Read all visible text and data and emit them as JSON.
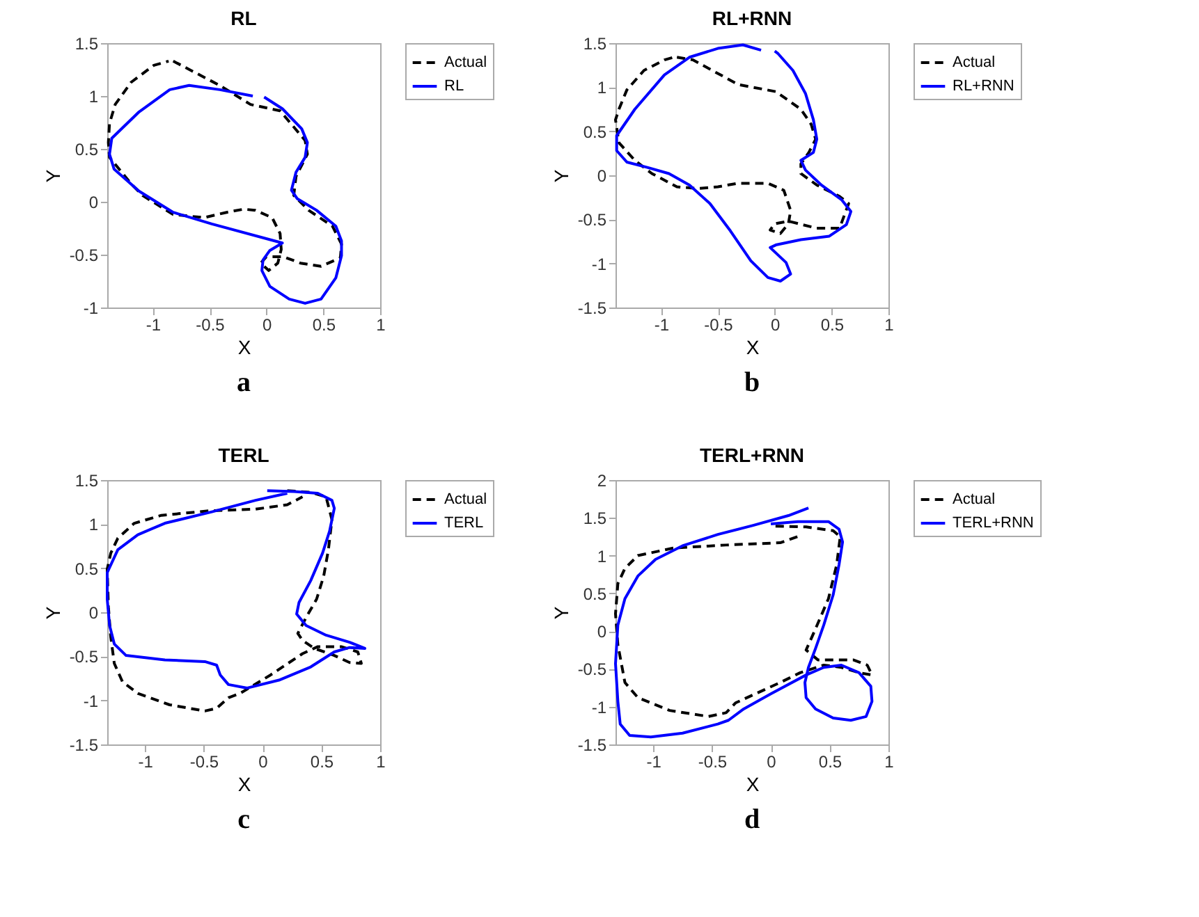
{
  "chart_data": [
    {
      "type": "line",
      "title": "RL",
      "xlabel": "X",
      "ylabel": "Y",
      "xlim": [
        -1.4,
        1
      ],
      "ylim": [
        -1,
        1.5
      ],
      "xticks": [
        -1,
        -0.5,
        0,
        0.5,
        1
      ],
      "yticks": [
        -1,
        -0.5,
        0,
        0.5,
        1,
        1.5
      ],
      "legend": "top right",
      "annotations": [
        "a"
      ],
      "series": [
        {
          "name": "Actual",
          "color": "#000000",
          "line_style": "dashed",
          "x": [
            -0.82,
            -0.41,
            -0.14,
            0.12,
            0.34,
            0.36,
            0.26,
            0.24,
            0.37,
            0.58,
            0.66,
            0.65,
            0.48,
            0.3,
            0.15,
            0.0,
            -0.05,
            0.02,
            0.1,
            0.13,
            0.12,
            0.05,
            -0.1,
            -0.2,
            -0.35,
            -0.55,
            -0.82,
            -1.09,
            -1.19,
            -1.38,
            -1.39,
            -1.38,
            -1.33,
            -1.19,
            -0.99,
            -0.86
          ],
          "values": [
            1.33,
            1.1,
            0.92,
            0.86,
            0.58,
            0.45,
            0.24,
            0.06,
            -0.08,
            -0.23,
            -0.4,
            -0.53,
            -0.61,
            -0.58,
            -0.52,
            -0.52,
            -0.58,
            -0.65,
            -0.58,
            -0.45,
            -0.3,
            -0.15,
            -0.08,
            -0.07,
            -0.1,
            -0.15,
            -0.12,
            0.06,
            0.17,
            0.42,
            0.56,
            0.74,
            0.92,
            1.13,
            1.29,
            1.33
          ]
        },
        {
          "name": "RL",
          "color": "#0000ff",
          "line_style": "solid",
          "x": [
            -0.12,
            -0.41,
            -0.68,
            -0.85,
            -1.12,
            -1.36,
            -1.38,
            -1.34,
            -1.12,
            -0.82,
            -0.48,
            0.14,
            0.03,
            -0.03,
            -0.04,
            0.03,
            0.2,
            0.34,
            0.48,
            0.61,
            0.66,
            0.66,
            0.61,
            0.44,
            0.27,
            0.22,
            0.26,
            0.34,
            0.36,
            0.31,
            0.14,
            -0.02
          ],
          "values": [
            1.0,
            1.06,
            1.1,
            1.06,
            0.85,
            0.6,
            0.45,
            0.31,
            0.1,
            -0.1,
            -0.21,
            -0.39,
            -0.46,
            -0.55,
            -0.65,
            -0.8,
            -0.92,
            -0.96,
            -0.92,
            -0.72,
            -0.51,
            -0.37,
            -0.23,
            -0.08,
            0.03,
            0.11,
            0.28,
            0.42,
            0.56,
            0.69,
            0.88,
            0.99
          ]
        }
      ]
    },
    {
      "type": "line",
      "title": "RL+RNN",
      "xlabel": "X",
      "ylabel": "Y",
      "xlim": [
        -1.4,
        1
      ],
      "ylim": [
        -1.5,
        1.5
      ],
      "xticks": [
        -1,
        -0.5,
        0,
        0.5,
        1
      ],
      "yticks": [
        -1.5,
        -1,
        -0.5,
        0,
        0.5,
        1,
        1.5
      ],
      "legend": "top right",
      "annotations": [
        "b"
      ],
      "series": [
        {
          "name": "Actual",
          "color": "#000000",
          "line_style": "dashed",
          "x": [
            -0.86,
            -0.72,
            -0.32,
            0.01,
            0.23,
            0.32,
            0.36,
            0.3,
            0.23,
            0.23,
            0.37,
            0.57,
            0.65,
            0.57,
            0.37,
            0.12,
            0.0,
            -0.04,
            0.05,
            0.12,
            0.14,
            0.08,
            -0.06,
            -0.32,
            -0.5,
            -0.68,
            -0.86,
            -1.08,
            -1.23,
            -1.37,
            -1.4,
            -1.37,
            -1.3,
            -1.15,
            -0.97,
            -0.89
          ],
          "values": [
            1.34,
            1.31,
            1.03,
            0.95,
            0.75,
            0.58,
            0.41,
            0.26,
            0.13,
            0.02,
            -0.11,
            -0.24,
            -0.32,
            -0.6,
            -0.6,
            -0.52,
            -0.55,
            -0.62,
            -0.66,
            -0.55,
            -0.4,
            -0.17,
            -0.09,
            -0.09,
            -0.13,
            -0.15,
            -0.13,
            0.02,
            0.17,
            0.37,
            0.63,
            0.75,
            0.97,
            1.19,
            1.31,
            1.34
          ]
        },
        {
          "name": "RL+RNN",
          "color": "#0000ff",
          "line_style": "solid",
          "x": [
            0.0,
            0.03,
            0.16,
            0.27,
            0.34,
            0.37,
            0.34,
            0.23,
            0.27,
            0.41,
            0.59,
            0.67,
            0.63,
            0.48,
            0.23,
            0.01,
            -0.04,
            0.1,
            0.14,
            0.05,
            -0.06,
            -0.21,
            -0.39,
            -0.57,
            -0.75,
            -0.93,
            -1.12,
            -1.3,
            -1.39,
            -1.39,
            -1.23,
            -0.97,
            -0.75,
            -0.5,
            -0.28,
            -0.12
          ],
          "values": [
            1.41,
            1.38,
            1.19,
            0.93,
            0.63,
            0.41,
            0.26,
            0.17,
            0.06,
            -0.11,
            -0.28,
            -0.41,
            -0.56,
            -0.69,
            -0.73,
            -0.79,
            -0.82,
            -0.99,
            -1.12,
            -1.2,
            -1.16,
            -0.97,
            -0.63,
            -0.32,
            -0.11,
            0.02,
            0.09,
            0.15,
            0.28,
            0.45,
            0.75,
            1.14,
            1.34,
            1.44,
            1.48,
            1.42
          ]
        }
      ]
    },
    {
      "type": "line",
      "title": "TERL",
      "xlabel": "X",
      "ylabel": "Y",
      "xlim": [
        -1.32,
        1
      ],
      "ylim": [
        -1.5,
        1.5
      ],
      "xticks": [
        -1,
        -0.5,
        0,
        0.5,
        1
      ],
      "yticks": [
        -1.5,
        -1,
        -0.5,
        0,
        0.5,
        1,
        1.5
      ],
      "legend": "top right",
      "annotations": [
        "c"
      ],
      "series": [
        {
          "name": "Actual",
          "color": "#000000",
          "line_style": "dashed",
          "x": [
            0.21,
            0.41,
            0.54,
            0.59,
            0.56,
            0.52,
            0.46,
            0.37,
            0.3,
            0.34,
            0.44,
            0.61,
            0.74,
            0.84,
            0.81,
            0.67,
            0.47,
            0.34,
            0.07,
            -0.19,
            -0.29,
            -0.39,
            -0.49,
            -0.79,
            -1.06,
            -1.19,
            -1.26,
            -1.29,
            -1.31,
            -1.32,
            -1.29,
            -1.23,
            -1.09,
            -0.86,
            -0.46,
            -0.06,
            0.21,
            0.34
          ],
          "values": [
            1.38,
            1.36,
            1.31,
            1.05,
            0.71,
            0.41,
            0.15,
            -0.06,
            -0.24,
            -0.32,
            -0.41,
            -0.49,
            -0.57,
            -0.58,
            -0.45,
            -0.39,
            -0.39,
            -0.47,
            -0.71,
            -0.92,
            -0.97,
            -1.09,
            -1.12,
            -1.05,
            -0.92,
            -0.79,
            -0.58,
            -0.28,
            0.06,
            0.49,
            0.67,
            0.84,
            1.01,
            1.1,
            1.15,
            1.17,
            1.22,
            1.31
          ]
        },
        {
          "name": "TERL",
          "color": "#0000ff",
          "line_style": "solid",
          "x": [
            0.04,
            0.27,
            0.47,
            0.59,
            0.61,
            0.57,
            0.51,
            0.41,
            0.31,
            0.29,
            0.37,
            0.54,
            0.74,
            0.87,
            0.74,
            0.61,
            0.41,
            0.14,
            -0.13,
            -0.29,
            -0.36,
            -0.39,
            -0.49,
            -0.83,
            -1.16,
            -1.26,
            -1.3,
            -1.32,
            -1.32,
            -1.23,
            -1.06,
            -0.83,
            -0.43,
            -0.06,
            0.21
          ],
          "values": [
            1.38,
            1.37,
            1.35,
            1.27,
            1.18,
            0.92,
            0.67,
            0.36,
            0.11,
            -0.02,
            -0.15,
            -0.26,
            -0.34,
            -0.41,
            -0.4,
            -0.45,
            -0.62,
            -0.77,
            -0.86,
            -0.82,
            -0.71,
            -0.6,
            -0.56,
            -0.54,
            -0.49,
            -0.36,
            -0.15,
            0.15,
            0.45,
            0.71,
            0.88,
            1.01,
            1.14,
            1.27,
            1.35
          ]
        }
      ]
    },
    {
      "type": "line",
      "title": "TERL+RNN",
      "xlabel": "X",
      "ylabel": "Y",
      "xlim": [
        -1.32,
        1
      ],
      "ylim": [
        -1.5,
        2
      ],
      "xticks": [
        -1,
        -0.5,
        0,
        0.5,
        1
      ],
      "yticks": [
        -1.5,
        -1,
        -0.5,
        0,
        0.5,
        1,
        1.5,
        2
      ],
      "legend": "top right",
      "annotations": [
        "d"
      ],
      "series": [
        {
          "name": "Actual",
          "color": "#000000",
          "line_style": "dashed",
          "x": [
            0.04,
            0.3,
            0.53,
            0.59,
            0.56,
            0.49,
            0.38,
            0.3,
            0.4,
            0.55,
            0.7,
            0.82,
            0.86,
            0.75,
            0.6,
            0.45,
            0.25,
            0.08,
            -0.3,
            -0.38,
            -0.53,
            -0.86,
            -1.13,
            -1.24,
            -1.3,
            -1.32,
            -1.3,
            -1.24,
            -1.13,
            -0.83,
            -0.38,
            0.08,
            0.26
          ],
          "values": [
            1.39,
            1.38,
            1.33,
            1.25,
            0.88,
            0.43,
            0.03,
            -0.25,
            -0.38,
            -0.38,
            -0.38,
            -0.45,
            -0.58,
            -0.55,
            -0.48,
            -0.45,
            -0.55,
            -0.68,
            -0.95,
            -1.08,
            -1.13,
            -1.05,
            -0.88,
            -0.68,
            -0.18,
            0.23,
            0.63,
            0.83,
            1.0,
            1.1,
            1.14,
            1.17,
            1.27
          ]
        },
        {
          "name": "TERL+RNN",
          "color": "#0000ff",
          "line_style": "solid",
          "x": [
            0.0,
            0.23,
            0.49,
            0.58,
            0.61,
            0.58,
            0.53,
            0.45,
            0.38,
            0.32,
            0.29,
            0.3,
            0.38,
            0.53,
            0.68,
            0.81,
            0.86,
            0.85,
            0.75,
            0.6,
            0.45,
            0.3,
            0.0,
            -0.23,
            -0.36,
            -0.45,
            -0.75,
            -1.02,
            -1.2,
            -1.28,
            -1.3,
            -1.32,
            -1.3,
            -1.24,
            -1.13,
            -0.98,
            -0.75,
            -0.45,
            -0.15,
            0.15,
            0.32
          ],
          "values": [
            1.42,
            1.45,
            1.45,
            1.35,
            1.18,
            0.88,
            0.48,
            0.08,
            -0.23,
            -0.48,
            -0.68,
            -0.88,
            -1.03,
            -1.15,
            -1.18,
            -1.13,
            -0.93,
            -0.73,
            -0.55,
            -0.45,
            -0.48,
            -0.58,
            -0.83,
            -1.03,
            -1.18,
            -1.23,
            -1.35,
            -1.4,
            -1.38,
            -1.23,
            -0.93,
            -0.43,
            0.08,
            0.43,
            0.73,
            0.95,
            1.13,
            1.28,
            1.4,
            1.53,
            1.63
          ]
        }
      ]
    }
  ]
}
